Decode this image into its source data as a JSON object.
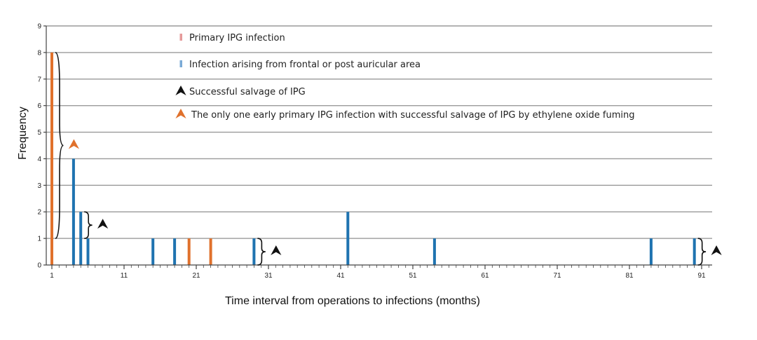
{
  "chart_data": {
    "type": "bar",
    "xlabel": "Time interval from operations to infections (months)",
    "ylabel": "Frequency",
    "xlim": [
      1,
      92
    ],
    "ylim": [
      0,
      9
    ],
    "x_ticks": [
      1,
      11,
      21,
      31,
      41,
      51,
      61,
      71,
      81,
      91
    ],
    "y_ticks": [
      0,
      1,
      2,
      3,
      4,
      5,
      6,
      7,
      8,
      9
    ],
    "grid": true,
    "colors": {
      "primary": "#e0712c",
      "other": "#1f73b0",
      "legend_primary": "#e59a9a",
      "legend_other": "#7aaad6",
      "marker": "#111111"
    },
    "series": [
      {
        "name": "Primary IPG infection",
        "color": "#e0712c",
        "points": [
          [
            1,
            8
          ],
          [
            20,
            1
          ],
          [
            23,
            1
          ]
        ]
      },
      {
        "name": "Infection arising from frontal or post auricular area",
        "color": "#1f73b0",
        "points": [
          [
            1,
            1
          ],
          [
            4,
            4
          ],
          [
            5,
            2
          ],
          [
            6,
            1
          ],
          [
            15,
            1
          ],
          [
            18,
            1
          ],
          [
            29,
            1
          ],
          [
            42,
            2
          ],
          [
            54,
            1
          ],
          [
            84,
            1
          ],
          [
            90,
            1
          ]
        ]
      }
    ],
    "legend": [
      {
        "label": "Primary IPG infection",
        "symbol": "bar",
        "color": "#e59a9a"
      },
      {
        "label": "Infection arising from frontal or post auricular area",
        "symbol": "bar",
        "color": "#7aaad6"
      },
      {
        "label": "Successful salvage of IPG",
        "symbol": "arrowhead",
        "color": "#111111"
      },
      {
        "label": "The only one early primary IPG infection with successful salvage of IPG by ethylene oxide fuming",
        "symbol": "arrowhead",
        "color": "#e0712c"
      }
    ],
    "annotations": [
      {
        "type": "brace",
        "x": 1,
        "y_range": [
          1,
          8
        ],
        "marker": "arrowhead",
        "color": "#e0712c"
      },
      {
        "type": "brace",
        "x": 5,
        "y_range": [
          1,
          2
        ],
        "marker": "arrowhead",
        "color": "#111111"
      },
      {
        "type": "brace",
        "x": 29,
        "y_range": [
          0,
          1
        ],
        "marker": "arrowhead",
        "color": "#111111"
      },
      {
        "type": "brace",
        "x": 90,
        "y_range": [
          0,
          1
        ],
        "marker": "arrowhead",
        "color": "#111111"
      }
    ]
  }
}
